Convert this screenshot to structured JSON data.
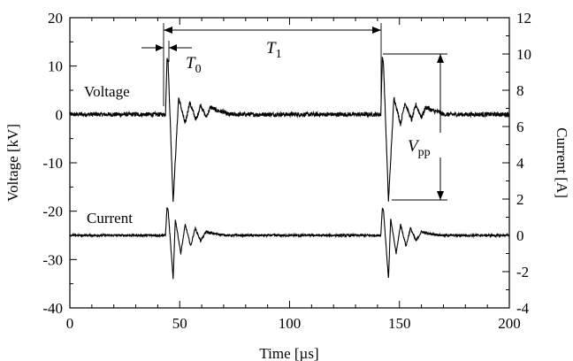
{
  "chart_data": {
    "type": "line",
    "xlabel": "Time [µs]",
    "ylabel_left": "Voltage [kV]",
    "ylabel_right": "Current [A]",
    "xlim": [
      0,
      200
    ],
    "ylim_left": [
      -40,
      20
    ],
    "ylim_right": [
      -4,
      12
    ],
    "x_ticks": [
      0,
      50,
      100,
      150,
      200
    ],
    "y_left_ticks": [
      -40,
      -30,
      -20,
      -10,
      0,
      10,
      20
    ],
    "y_right_ticks": [
      -4,
      -2,
      0,
      2,
      4,
      6,
      8,
      10,
      12
    ],
    "grid": false,
    "series": [
      {
        "name": "Voltage",
        "axis": "left",
        "pulse_times": [
          44,
          142
        ],
        "baseline": 0,
        "peak": 11.5,
        "trough": -18,
        "ringing": [
          [
            49.5,
            3.5
          ],
          [
            52.5,
            -2.0
          ],
          [
            54.5,
            2.5
          ],
          [
            57.5,
            -1.2
          ],
          [
            59.5,
            2.0
          ],
          [
            62,
            -0.6
          ],
          [
            64,
            1.5
          ],
          [
            67,
            0.8
          ],
          [
            70,
            0.5
          ]
        ]
      },
      {
        "name": "Current",
        "axis": "right",
        "pulse_times": [
          44,
          142
        ],
        "baseline": 0,
        "peak": 1.5,
        "trough": -2.4,
        "ringing": [
          [
            48,
            0.9
          ],
          [
            50.5,
            -1.0
          ],
          [
            52.5,
            0.6
          ],
          [
            55,
            -0.6
          ],
          [
            57,
            0.4
          ],
          [
            59.5,
            -0.3
          ],
          [
            62,
            0.2
          ],
          [
            65,
            0.1
          ]
        ]
      }
    ],
    "annotations": {
      "voltage_label": "Voltage",
      "current_label": "Current",
      "t0_main": "T",
      "t0_sub": "0",
      "t1_main": "T",
      "t1_sub": "1",
      "vpp_main": "V",
      "vpp_sub": "pp"
    }
  }
}
